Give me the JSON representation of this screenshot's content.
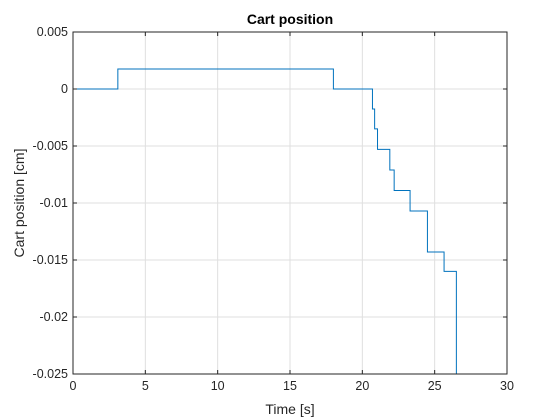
{
  "chart_data": {
    "type": "line",
    "title": "Cart position",
    "xlabel": "Time [s]",
    "ylabel": "Cart position [cm]",
    "xlim": [
      0,
      30
    ],
    "ylim": [
      -0.025,
      0.005
    ],
    "xticks": [
      0,
      5,
      10,
      15,
      20,
      25,
      30
    ],
    "xtick_labels": [
      "0",
      "5",
      "10",
      "15",
      "20",
      "25",
      "30"
    ],
    "yticks": [
      0.005,
      0,
      -0.005,
      -0.01,
      -0.015,
      -0.02,
      -0.025
    ],
    "ytick_labels": [
      "0.005",
      "0",
      "-0.005",
      "-0.01",
      "-0.015",
      "-0.02",
      "-0.025"
    ],
    "grid": true,
    "step": true,
    "line_color": "#0072bd",
    "series": [
      {
        "x": [
          0,
          3.1,
          18.0,
          20.7,
          20.85,
          21.05,
          21.3,
          21.9,
          22.2,
          22.4,
          23.3,
          24.5,
          25.5,
          25.65,
          26.5,
          30
        ],
        "y": [
          0,
          0.00175,
          0,
          -0.00175,
          -0.0035,
          -0.0053,
          -0.0053,
          -0.0071,
          -0.0089,
          -0.0089,
          -0.0107,
          -0.0143,
          -0.0143,
          -0.016,
          -0.025,
          -0.025
        ]
      }
    ]
  }
}
